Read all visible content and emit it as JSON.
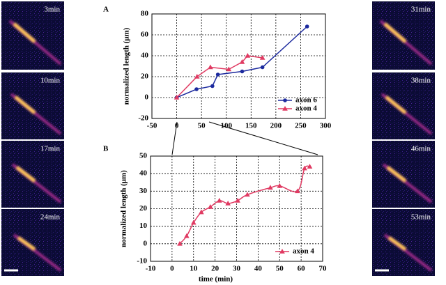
{
  "micrographs": {
    "left": [
      "3min",
      "10min",
      "17min",
      "24min"
    ],
    "right": [
      "31min",
      "38min",
      "46min",
      "53min"
    ]
  },
  "chart_data": [
    {
      "type": "line",
      "panel": "A",
      "ylabel": "normalized length (μm)",
      "xlim": [
        -50,
        300
      ],
      "xticks": [
        -50,
        0,
        50,
        100,
        150,
        200,
        250,
        300
      ],
      "ylim": [
        -20,
        80
      ],
      "yticks": [
        -20,
        0,
        20,
        40,
        60,
        80
      ],
      "grid": true,
      "legend": "lower right",
      "smooth": false,
      "series": [
        {
          "name": "axon 6",
          "color": "#1c2a9e",
          "marker": "circle",
          "x": [
            0,
            40,
            72,
            83,
            132,
            173,
            263
          ],
          "values": [
            0,
            8,
            11,
            22,
            25,
            29,
            68
          ]
        },
        {
          "name": "axon 4",
          "color": "#e03a62",
          "marker": "triangle",
          "x": [
            0,
            41,
            68,
            105,
            132,
            143,
            173
          ],
          "values": [
            0,
            20,
            29,
            27,
            34,
            40,
            38
          ]
        }
      ]
    },
    {
      "type": "line",
      "panel": "B",
      "ylabel": "normalized length (μm)",
      "xlabel": "time  (min)",
      "xlim": [
        -10,
        70
      ],
      "xticks": [
        -10,
        0,
        10,
        20,
        30,
        40,
        50,
        60,
        70
      ],
      "ylim": [
        -10,
        50
      ],
      "yticks": [
        -10,
        0,
        10,
        20,
        30,
        40,
        50
      ],
      "grid": true,
      "legend": "lower right",
      "smooth": true,
      "series": [
        {
          "name": "axon 4",
          "color": "#e03a62",
          "marker": "triangle",
          "x": [
            3.6,
            6.8,
            10,
            13.6,
            17.8,
            22,
            26,
            30.5,
            35,
            45.7,
            50,
            58.3,
            61.6,
            64
          ],
          "values": [
            0,
            4.4,
            12,
            18,
            21,
            24.6,
            23,
            24.6,
            28,
            32,
            33,
            30,
            43,
            44
          ]
        }
      ]
    }
  ]
}
